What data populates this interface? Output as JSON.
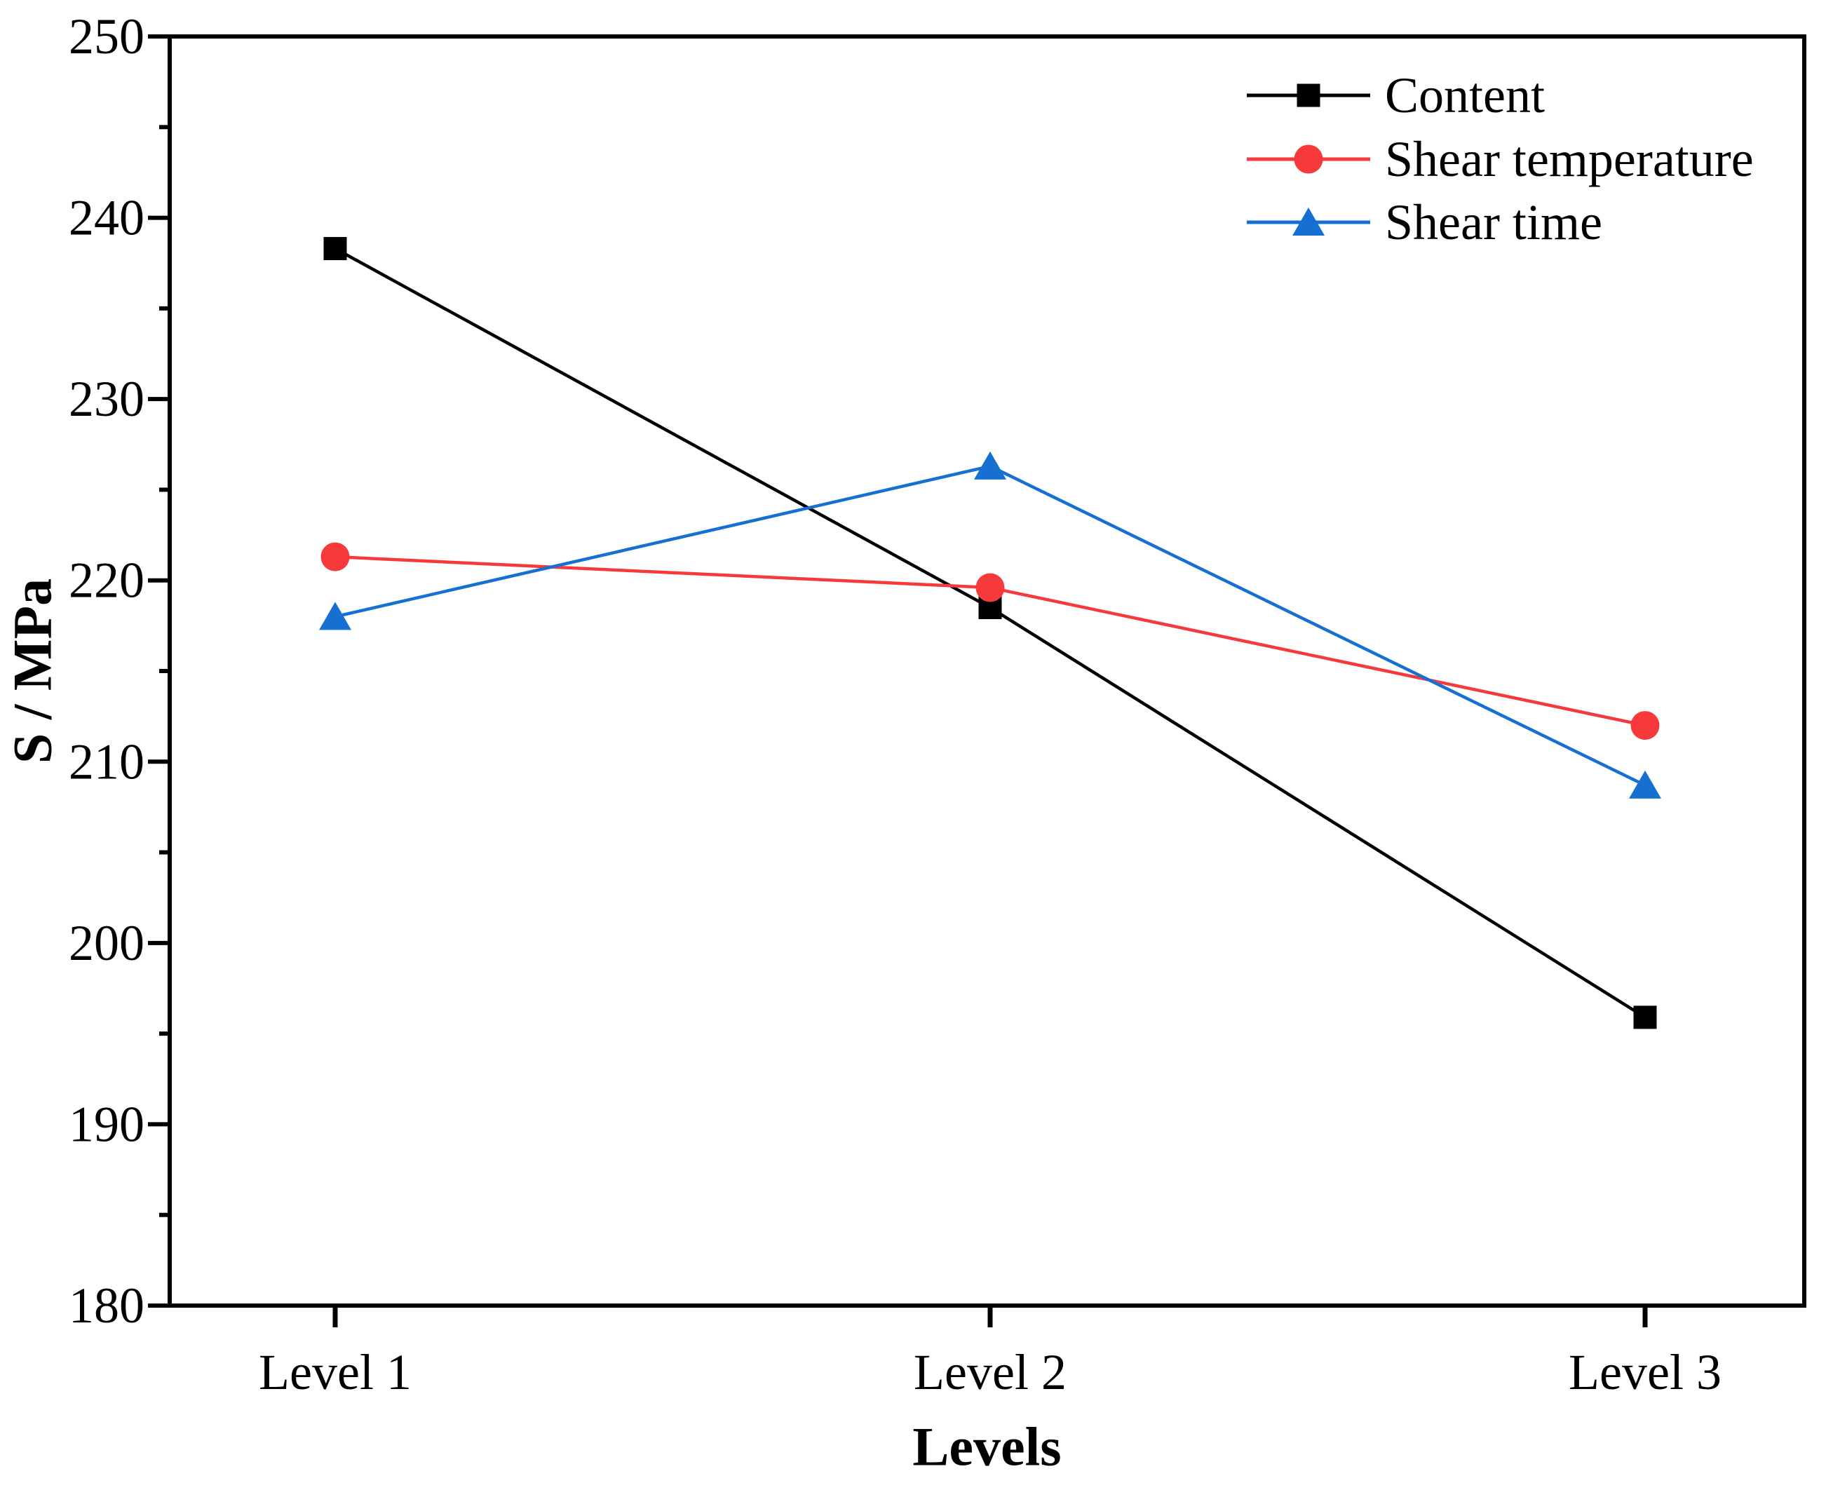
{
  "figure": {
    "background": "#FFFFFF",
    "axis_color": "#000000"
  },
  "chart_data": {
    "type": "line",
    "title": "",
    "xlabel": "Levels",
    "ylabel": "S / MPa",
    "categories": [
      "Level 1",
      "Level 2",
      "Level 3"
    ],
    "series": [
      {
        "name": "Content",
        "marker": "square",
        "color": "#000000",
        "values": [
          238.3,
          218.5,
          195.9
        ]
      },
      {
        "name": "Shear temperature",
        "marker": "circle",
        "color": "#F63A3C",
        "values": [
          221.3,
          219.6,
          212.0
        ]
      },
      {
        "name": "Shear time",
        "marker": "triangle",
        "color": "#1570D2",
        "values": [
          218.0,
          226.3,
          208.7
        ]
      }
    ],
    "ylim": [
      180,
      250
    ],
    "y_major_ticks": [
      250,
      240,
      230,
      220,
      210,
      200,
      190,
      180
    ],
    "y_minor_ticks": [
      245,
      235,
      225,
      215,
      205,
      195,
      185
    ],
    "grid": false,
    "legend": {
      "position": "top-right-inside",
      "entries": [
        "Content",
        "Shear temperature",
        "Shear time"
      ]
    }
  }
}
